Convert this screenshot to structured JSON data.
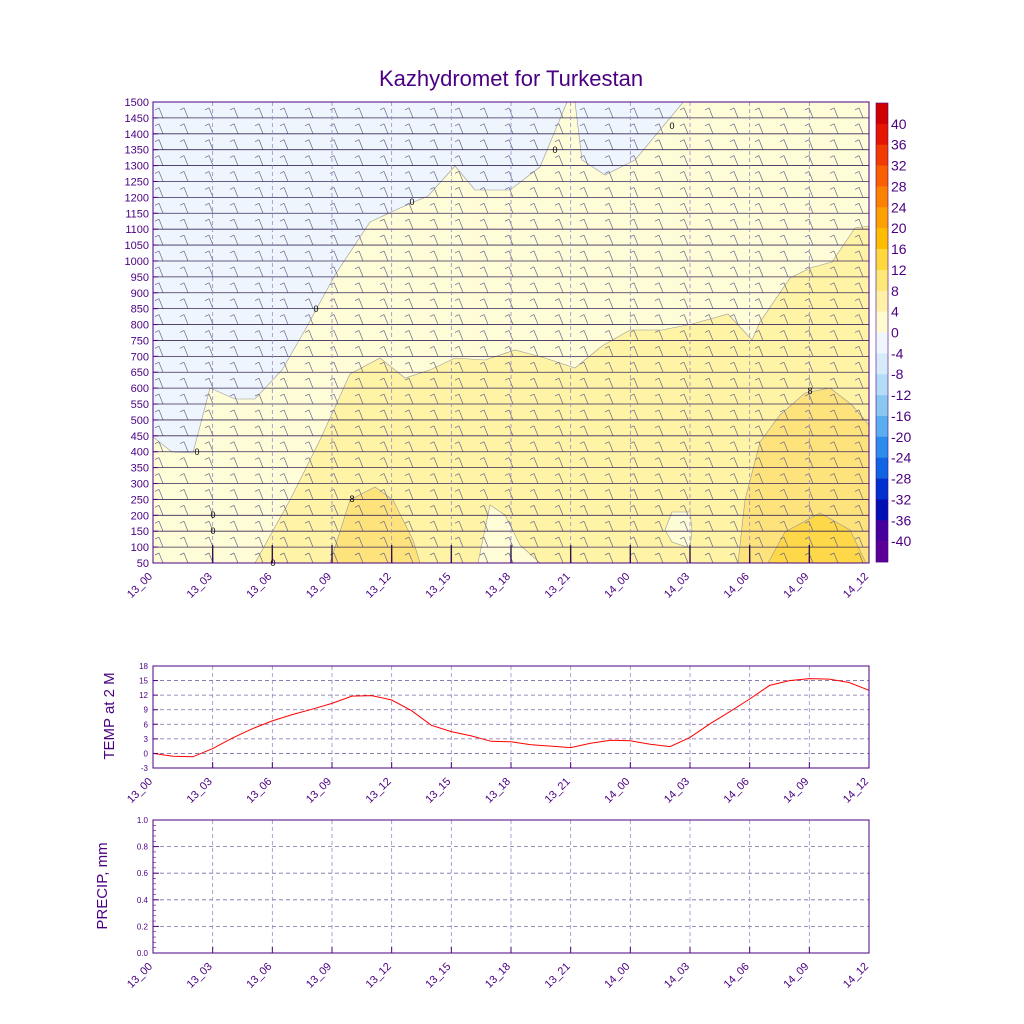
{
  "chart_data": [
    {
      "type": "heatmap",
      "title": "Kazhydromet for Turkestan",
      "x_tick_labels": [
        "13_00",
        "13_03",
        "13_06",
        "13_09",
        "13_12",
        "13_15",
        "13_18",
        "13_21",
        "14_00",
        "14_03",
        "14_06",
        "14_09",
        "14_12"
      ],
      "y_tick_labels": [
        "50",
        "100",
        "150",
        "200",
        "250",
        "300",
        "350",
        "400",
        "450",
        "500",
        "550",
        "600",
        "650",
        "700",
        "750",
        "800",
        "850",
        "900",
        "950",
        "1000",
        "1050",
        "1100",
        "1150",
        "1200",
        "1250",
        "1300",
        "1350",
        "1400",
        "1450",
        "1500"
      ],
      "ylim": [
        50,
        1500
      ],
      "colorbar_labels": [
        "40",
        "36",
        "32",
        "28",
        "24",
        "20",
        "16",
        "12",
        "8",
        "4",
        "0",
        "-4",
        "-8",
        "-12",
        "-16",
        "-20",
        "-24",
        "-28",
        "-32",
        "-36",
        "-40"
      ],
      "colorbar_colors": [
        "#d00000",
        "#e61500",
        "#f03c00",
        "#f86000",
        "#fb8200",
        "#fca200",
        "#fdbe00",
        "#fed83c",
        "#fee878",
        "#fff2a8",
        "#fffbd0",
        "#f0f6fe",
        "#d6ecfb",
        "#b4dcf7",
        "#8ac8f2",
        "#5aaef0",
        "#2d8ceb",
        "#0f64e1",
        "#0030cd",
        "#0010b4",
        "#46009b",
        "#5a0096"
      ],
      "contour_labels": [
        "0",
        "0",
        "0",
        "0",
        "0",
        "0",
        "8",
        "8",
        "0",
        "0"
      ]
    },
    {
      "type": "line",
      "ylabel": "TEMP at 2 M",
      "ylim": [
        -3,
        18
      ],
      "y_tick_labels": [
        "-3",
        "0",
        "3",
        "6",
        "9",
        "12",
        "15",
        "18"
      ],
      "x_tick_labels": [
        "13_00",
        "13_03",
        "13_06",
        "13_09",
        "13_12",
        "13_15",
        "13_18",
        "13_21",
        "14_00",
        "14_03",
        "14_06",
        "14_09",
        "14_12"
      ],
      "x_hours": [
        0,
        1,
        2,
        3,
        4,
        5,
        6,
        7,
        8,
        9,
        10,
        11,
        12,
        13,
        14,
        15,
        16,
        17,
        18,
        19,
        20,
        21,
        22,
        23,
        24,
        25,
        26,
        27,
        28,
        29,
        30,
        31,
        32,
        33,
        34,
        35,
        36
      ],
      "series": [
        {
          "color": "#ff0000",
          "values": [
            0,
            -0.6,
            -0.7,
            1,
            3.2,
            5.1,
            6.7,
            8,
            9.1,
            10.3,
            11.8,
            11.9,
            11,
            8.8,
            5.8,
            4.5,
            3.6,
            2.5,
            2.4,
            1.8,
            1.5,
            1.2,
            2.1,
            2.7,
            2.6,
            1.9,
            1.4,
            3.3,
            6.1,
            8.6,
            11.2,
            14,
            15,
            15.4,
            15.3,
            14.6,
            13
          ]
        }
      ]
    },
    {
      "type": "line",
      "ylabel": "PRECIP, mm",
      "ylim": [
        0,
        1
      ],
      "y_tick_labels": [
        "0.0",
        "0.2",
        "0.4",
        "0.6",
        "0.8",
        "1.0"
      ],
      "x_tick_labels": [
        "13_00",
        "13_03",
        "13_06",
        "13_09",
        "13_12",
        "13_15",
        "13_18",
        "13_21",
        "14_00",
        "14_03",
        "14_06",
        "14_09",
        "14_12"
      ],
      "series": []
    }
  ]
}
